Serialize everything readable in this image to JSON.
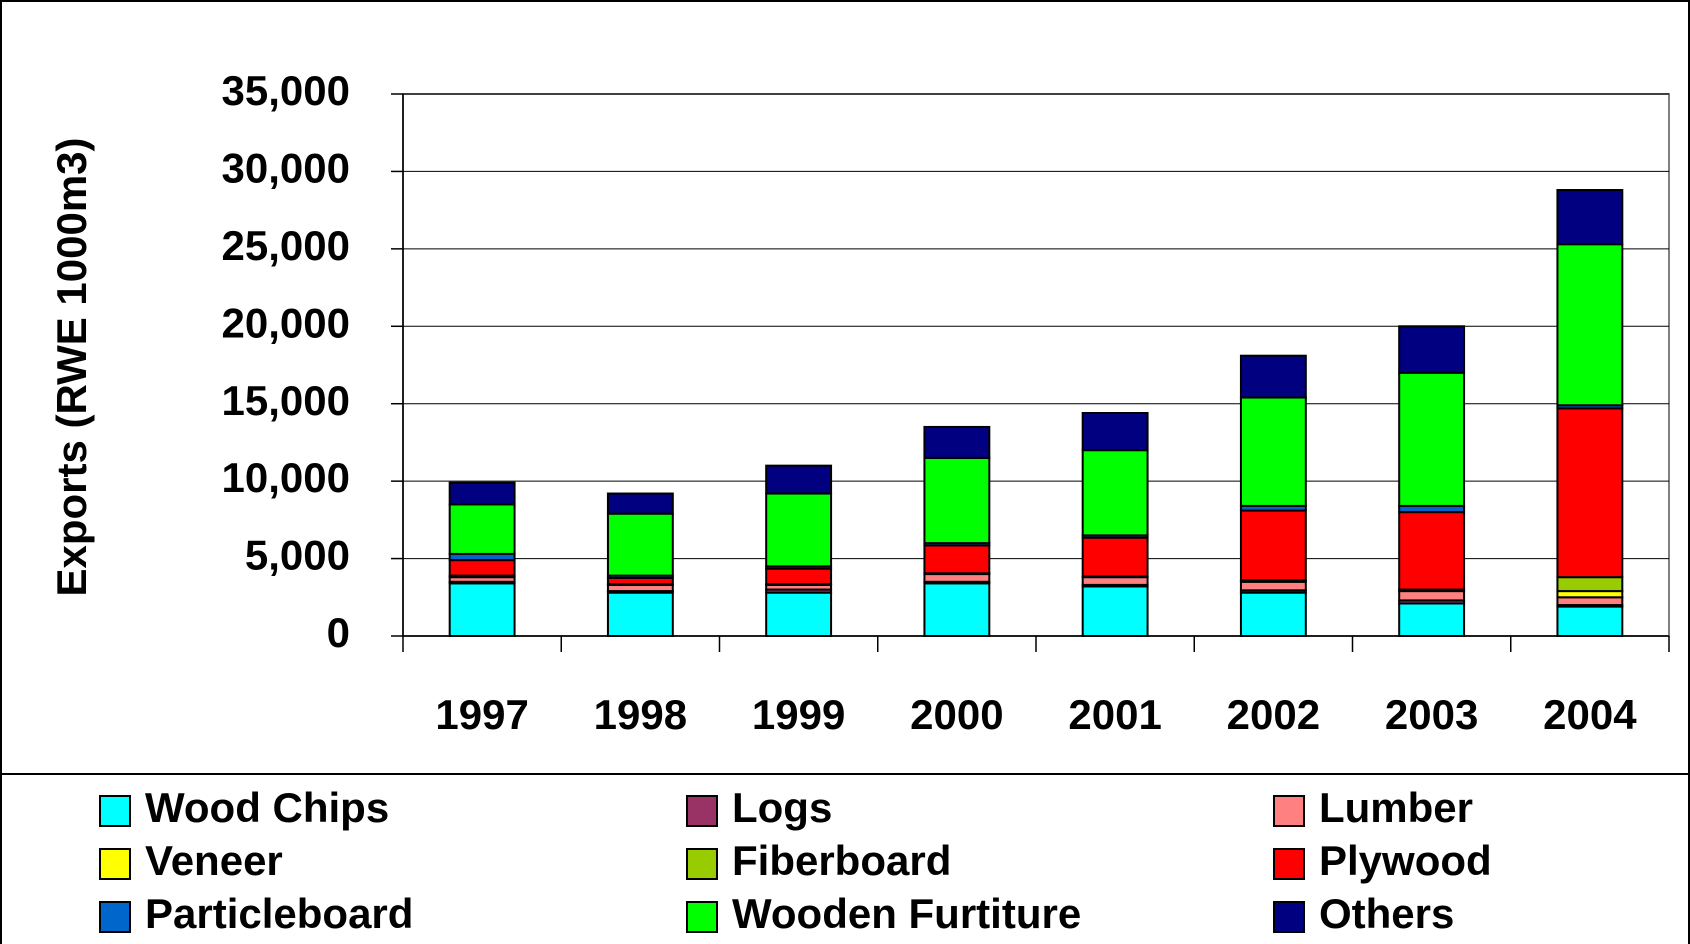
{
  "chart_data": {
    "type": "stacked_bar",
    "ylabel": "Exports (RWE 1000m3)",
    "categories": [
      "1997",
      "1998",
      "1999",
      "2000",
      "2001",
      "2002",
      "2003",
      "2004"
    ],
    "series": [
      {
        "name": "Wood Chips",
        "color": "#00ffff",
        "values": [
          3400,
          2800,
          2800,
          3400,
          3200,
          2800,
          2100,
          1900
        ]
      },
      {
        "name": "Logs",
        "color": "#993366",
        "values": [
          100,
          100,
          200,
          100,
          100,
          150,
          200,
          100
        ]
      },
      {
        "name": "Lumber",
        "color": "#ff8080",
        "values": [
          300,
          400,
          300,
          500,
          500,
          550,
          600,
          500
        ]
      },
      {
        "name": "Veneer",
        "color": "#ffff00",
        "values": [
          0,
          0,
          0,
          0,
          0,
          0,
          0,
          400
        ]
      },
      {
        "name": "Fiberboard",
        "color": "#99cc00",
        "values": [
          100,
          50,
          50,
          50,
          50,
          100,
          100,
          900
        ]
      },
      {
        "name": "Plywood",
        "color": "#ff0000",
        "values": [
          1000,
          400,
          1000,
          1800,
          2500,
          4500,
          5000,
          10900
        ]
      },
      {
        "name": "Particleboard",
        "color": "#0066cc",
        "values": [
          400,
          150,
          150,
          150,
          150,
          300,
          400,
          200
        ]
      },
      {
        "name": "Wooden Furtiture",
        "color": "#00ff00",
        "values": [
          3200,
          4000,
          4700,
          5500,
          5500,
          7000,
          8600,
          10400
        ]
      },
      {
        "name": "Others",
        "color": "#000080",
        "values": [
          1400,
          1300,
          1800,
          2000,
          2400,
          2700,
          3000,
          3500
        ]
      }
    ],
    "ylim": [
      0,
      35000
    ],
    "yticks": [
      0,
      {
        "value": 5000,
        "label": "5,000"
      },
      {
        "value": 10000,
        "label": "10,000"
      },
      {
        "value": 15000,
        "label": "15,000"
      },
      {
        "value": 20000,
        "label": "20,000"
      },
      {
        "value": 25000,
        "label": "25,000"
      },
      {
        "value": 30000,
        "label": "30,000"
      },
      {
        "value": 35000,
        "label": "35,000"
      }
    ],
    "grid": true
  }
}
